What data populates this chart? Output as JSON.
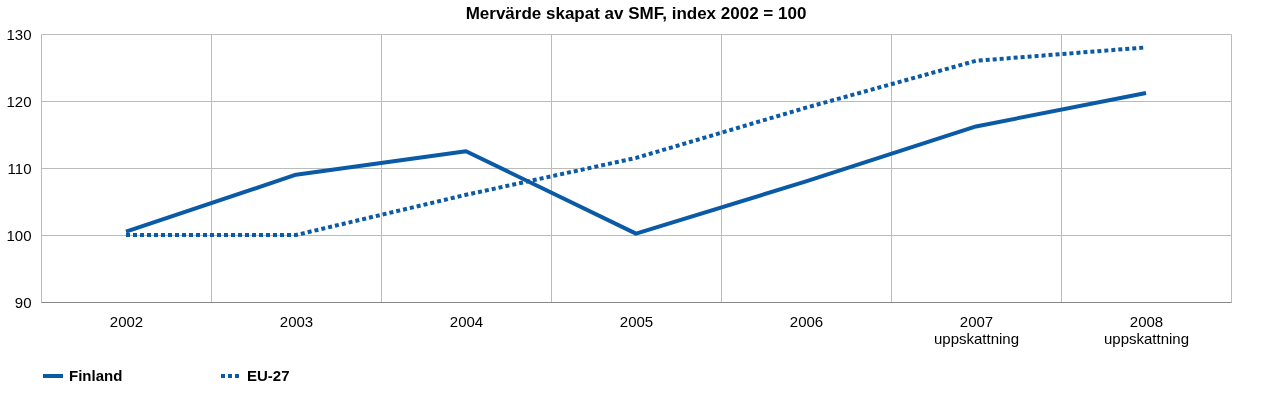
{
  "chart_data": {
    "type": "line",
    "title": "Mervärde skapat av SMF, index 2002 = 100",
    "categories": [
      "2002",
      "2003",
      "2004",
      "2005",
      "2006",
      "2007\nuppskattning",
      "2008\nuppskattning"
    ],
    "series": [
      {
        "name": "Finland",
        "color": "#0b5aa6",
        "line_style": "solid",
        "values": [
          100.5,
          109,
          112.5,
          100.2,
          108,
          116.2,
          121.2
        ]
      },
      {
        "name": "EU-27",
        "color": "#0b5aa6",
        "line_style": "dotted",
        "values": [
          100,
          100,
          106,
          111.5,
          119,
          126,
          128
        ]
      }
    ],
    "ylim": [
      90,
      130
    ],
    "yticks": [
      90,
      100,
      110,
      120,
      130
    ],
    "grid": true,
    "legend": "bottom",
    "marker": "none"
  }
}
